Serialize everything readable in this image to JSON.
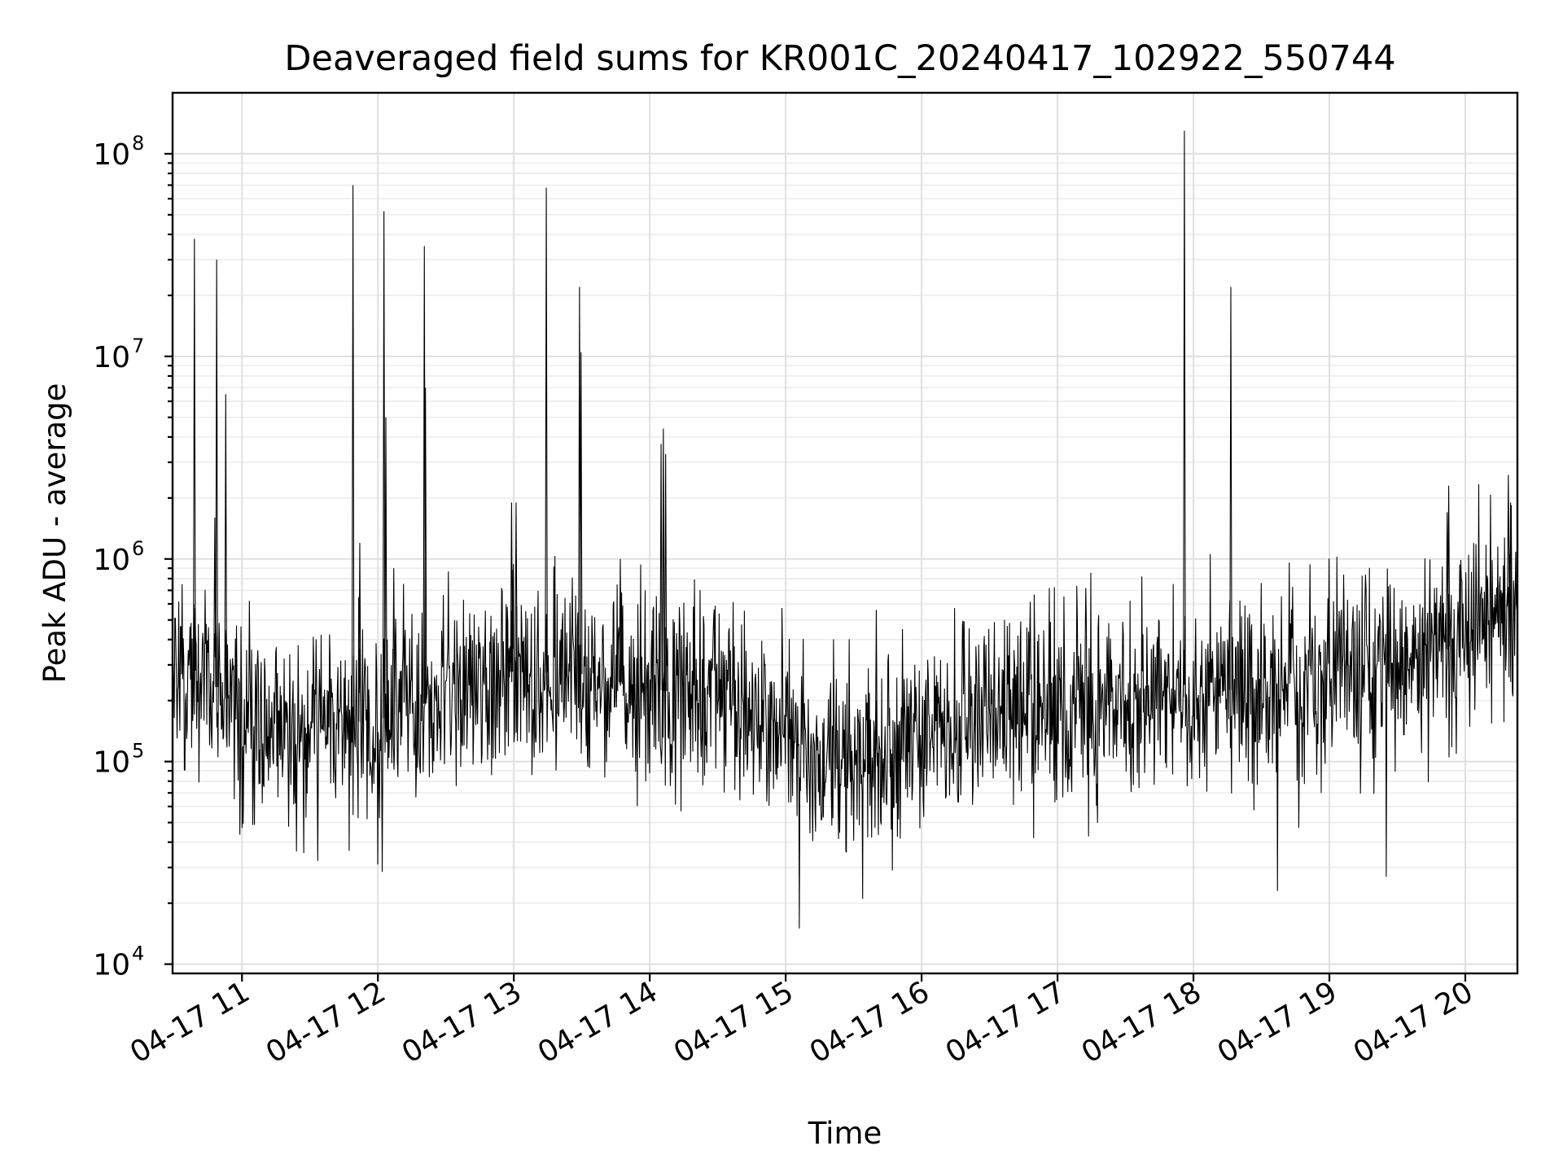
{
  "chart_data": {
    "type": "line",
    "title": "Deaveraged field sums for KR001C_20240417_102922_550744",
    "xlabel": "Time",
    "ylabel": "Peak ADU - average",
    "x_scale": "time",
    "y_scale": "log",
    "xlim": [
      "2024-04-17 10:29:22",
      "2024-04-17 20:23:00"
    ],
    "ylim": [
      9000,
      200000000
    ],
    "grid": true,
    "grid_minor": true,
    "line_color": "#000000",
    "x_ticks": [
      {
        "value": "2024-04-17 11:00",
        "label": "04-17 11"
      },
      {
        "value": "2024-04-17 12:00",
        "label": "04-17 12"
      },
      {
        "value": "2024-04-17 13:00",
        "label": "04-17 13"
      },
      {
        "value": "2024-04-17 14:00",
        "label": "04-17 14"
      },
      {
        "value": "2024-04-17 15:00",
        "label": "04-17 15"
      },
      {
        "value": "2024-04-17 16:00",
        "label": "04-17 16"
      },
      {
        "value": "2024-04-17 17:00",
        "label": "04-17 17"
      },
      {
        "value": "2024-04-17 18:00",
        "label": "04-17 18"
      },
      {
        "value": "2024-04-17 19:00",
        "label": "04-17 19"
      },
      {
        "value": "2024-04-17 20:00",
        "label": "04-17 20"
      }
    ],
    "y_ticks": [
      {
        "value": 10000,
        "base": "10",
        "exp": "4"
      },
      {
        "value": 100000,
        "base": "10",
        "exp": "5"
      },
      {
        "value": 1000000,
        "base": "10",
        "exp": "6"
      },
      {
        "value": 10000000,
        "base": "10",
        "exp": "7"
      },
      {
        "value": 100000000,
        "base": "10",
        "exp": "8"
      }
    ],
    "baseline_profile": [
      {
        "time": "2024-04-17 10:29",
        "value": 320000
      },
      {
        "time": "2024-04-17 10:45",
        "value": 260000
      },
      {
        "time": "2024-04-17 11:00",
        "value": 170000
      },
      {
        "time": "2024-04-17 11:30",
        "value": 150000
      },
      {
        "time": "2024-04-17 12:00",
        "value": 160000
      },
      {
        "time": "2024-04-17 12:30",
        "value": 210000
      },
      {
        "time": "2024-04-17 13:00",
        "value": 280000
      },
      {
        "time": "2024-04-17 13:30",
        "value": 270000
      },
      {
        "time": "2024-04-17 14:00",
        "value": 230000
      },
      {
        "time": "2024-04-17 14:30",
        "value": 200000
      },
      {
        "time": "2024-04-17 15:00",
        "value": 140000
      },
      {
        "time": "2024-04-17 15:15",
        "value": 95000
      },
      {
        "time": "2024-04-17 15:40",
        "value": 95000
      },
      {
        "time": "2024-04-17 16:00",
        "value": 140000
      },
      {
        "time": "2024-04-17 16:30",
        "value": 170000
      },
      {
        "time": "2024-04-17 17:00",
        "value": 185000
      },
      {
        "time": "2024-04-17 17:30",
        "value": 200000
      },
      {
        "time": "2024-04-17 18:00",
        "value": 210000
      },
      {
        "time": "2024-04-17 18:30",
        "value": 240000
      },
      {
        "time": "2024-04-17 19:00",
        "value": 260000
      },
      {
        "time": "2024-04-17 19:30",
        "value": 280000
      },
      {
        "time": "2024-04-17 19:50",
        "value": 330000
      },
      {
        "time": "2024-04-17 20:00",
        "value": 500000
      },
      {
        "time": "2024-04-17 20:23",
        "value": 600000
      }
    ],
    "spikes": [
      {
        "time": "2024-04-17 10:39",
        "value": 38000000
      },
      {
        "time": "2024-04-17 10:48",
        "value": 1600000
      },
      {
        "time": "2024-04-17 10:48:50",
        "value": 30000000
      },
      {
        "time": "2024-04-17 10:52:50",
        "value": 6500000
      },
      {
        "time": "2024-04-17 11:49",
        "value": 70000000
      },
      {
        "time": "2024-04-17 11:52",
        "value": 1200000
      },
      {
        "time": "2024-04-17 12:02:40",
        "value": 52000000
      },
      {
        "time": "2024-04-17 12:03:30",
        "value": 5000000
      },
      {
        "time": "2024-04-17 12:07",
        "value": 900000
      },
      {
        "time": "2024-04-17 12:20:30",
        "value": 35000000
      },
      {
        "time": "2024-04-17 12:21",
        "value": 7000000
      },
      {
        "time": "2024-04-17 12:59",
        "value": 1900000
      },
      {
        "time": "2024-04-17 13:01",
        "value": 1900000
      },
      {
        "time": "2024-04-17 13:14:20",
        "value": 68000000
      },
      {
        "time": "2024-04-17 13:29",
        "value": 22000000
      },
      {
        "time": "2024-04-17 13:29:40",
        "value": 10500000
      },
      {
        "time": "2024-04-17 13:47",
        "value": 1000000
      },
      {
        "time": "2024-04-17 14:05",
        "value": 3700000
      },
      {
        "time": "2024-04-17 14:06",
        "value": 4400000
      },
      {
        "time": "2024-04-17 14:07",
        "value": 3300000
      },
      {
        "time": "2024-04-17 15:40",
        "value": 560000
      },
      {
        "time": "2024-04-17 17:56",
        "value": 130000000
      },
      {
        "time": "2024-04-17 18:16:30",
        "value": 22000000
      },
      {
        "time": "2024-04-17 19:52",
        "value": 1700000
      },
      {
        "time": "2024-04-17 19:52:40",
        "value": 2300000
      },
      {
        "time": "2024-04-17 20:19",
        "value": 2600000
      },
      {
        "time": "2024-04-17 20:20",
        "value": 1900000
      }
    ],
    "dips": [
      {
        "time": "2024-04-17 15:06",
        "value": 15000
      },
      {
        "time": "2024-04-17 15:34",
        "value": 21000
      },
      {
        "time": "2024-04-17 15:47",
        "value": 29000
      },
      {
        "time": "2024-04-17 18:37",
        "value": 23000
      },
      {
        "time": "2024-04-17 19:25",
        "value": 27000
      },
      {
        "time": "2024-04-17 12:00",
        "value": 31000
      },
      {
        "time": "2024-04-17 11:24",
        "value": 36000
      }
    ],
    "noise_log10_spread": 0.24,
    "approximate_samples": 2400
  }
}
